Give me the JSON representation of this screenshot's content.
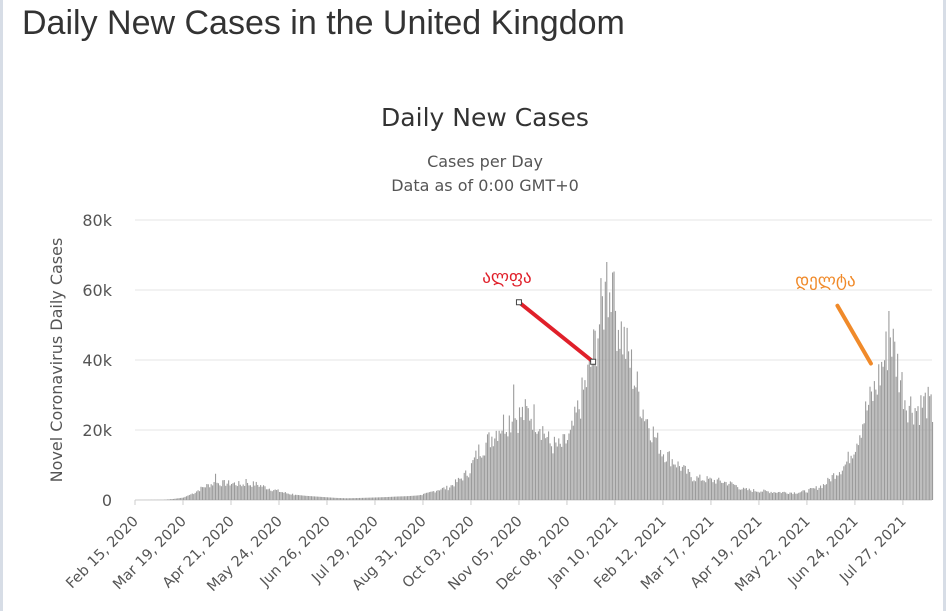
{
  "page": {
    "title": "Daily New Cases in the United Kingdom"
  },
  "chart_data": {
    "type": "bar",
    "title": "Daily New Cases",
    "subtitle": "Cases per Day",
    "subtitle2": "Data as of 0:00 GMT+0",
    "ylabel": "Novel Coronavirus Daily Cases",
    "xlabel": "",
    "ylim": [
      0,
      80000
    ],
    "yticks": [
      0,
      20000,
      40000,
      60000,
      80000
    ],
    "ytick_labels": [
      "0",
      "20k",
      "40k",
      "60k",
      "80k"
    ],
    "grid": true,
    "bar_color": "#9b9b9b",
    "x_start": "2020-02-15",
    "x_end": "2021-08-16",
    "x_tick_labels": [
      "Feb 15, 2020",
      "Mar 19, 2020",
      "Apr 21, 2020",
      "May 24, 2020",
      "Jun 26, 2020",
      "Jul 29, 2020",
      "Aug 31, 2020",
      "Oct 03, 2020",
      "Nov 05, 2020",
      "Dec 08, 2020",
      "Jan 10, 2021",
      "Feb 12, 2021",
      "Mar 17, 2021",
      "Apr 19, 2021",
      "May 22, 2021",
      "Jun 24, 2021",
      "Jul 27, 2021"
    ],
    "x_tick_dates": [
      "2020-02-15",
      "2020-03-19",
      "2020-04-21",
      "2020-05-24",
      "2020-06-26",
      "2020-07-29",
      "2020-08-31",
      "2020-10-03",
      "2020-11-05",
      "2020-12-08",
      "2021-01-10",
      "2021-02-12",
      "2021-03-17",
      "2021-04-19",
      "2021-05-22",
      "2021-06-24",
      "2021-07-27"
    ],
    "series": [
      {
        "points": [
          [
            "2020-02-15",
            0
          ],
          [
            "2020-03-05",
            50
          ],
          [
            "2020-03-12",
            300
          ],
          [
            "2020-03-19",
            700
          ],
          [
            "2020-03-26",
            2000
          ],
          [
            "2020-04-02",
            3800
          ],
          [
            "2020-04-09",
            4800
          ],
          [
            "2020-04-16",
            4800
          ],
          [
            "2020-04-23",
            4700
          ],
          [
            "2020-04-30",
            4300
          ],
          [
            "2020-05-07",
            4600
          ],
          [
            "2020-05-14",
            3700
          ],
          [
            "2020-05-21",
            2800
          ],
          [
            "2020-05-28",
            2000
          ],
          [
            "2020-06-04",
            1500
          ],
          [
            "2020-06-11",
            1200
          ],
          [
            "2020-06-18",
            1000
          ],
          [
            "2020-06-25",
            800
          ],
          [
            "2020-07-02",
            600
          ],
          [
            "2020-07-09",
            500
          ],
          [
            "2020-07-16",
            560
          ],
          [
            "2020-07-23",
            650
          ],
          [
            "2020-07-30",
            740
          ],
          [
            "2020-08-06",
            850
          ],
          [
            "2020-08-13",
            1000
          ],
          [
            "2020-08-20",
            1100
          ],
          [
            "2020-08-27",
            1300
          ],
          [
            "2020-09-03",
            1800
          ],
          [
            "2020-09-10",
            3000
          ],
          [
            "2020-09-17",
            3500
          ],
          [
            "2020-09-24",
            5500
          ],
          [
            "2020-10-01",
            8000
          ],
          [
            "2020-10-08",
            14000
          ],
          [
            "2020-10-15",
            17000
          ],
          [
            "2020-10-22",
            21000
          ],
          [
            "2020-10-29",
            23000
          ],
          [
            "2020-11-05",
            24000
          ],
          [
            "2020-11-12",
            25000
          ],
          [
            "2020-11-19",
            22000
          ],
          [
            "2020-11-26",
            16000
          ],
          [
            "2020-12-03",
            15000
          ],
          [
            "2020-12-10",
            18000
          ],
          [
            "2020-12-17",
            28000
          ],
          [
            "2020-12-24",
            38000
          ],
          [
            "2020-12-31",
            53000
          ],
          [
            "2021-01-04",
            60000
          ],
          [
            "2021-01-07",
            58000
          ],
          [
            "2021-01-14",
            48000
          ],
          [
            "2021-01-21",
            38000
          ],
          [
            "2021-01-28",
            27000
          ],
          [
            "2021-02-04",
            20000
          ],
          [
            "2021-02-11",
            14000
          ],
          [
            "2021-02-18",
            11500
          ],
          [
            "2021-02-25",
            9000
          ],
          [
            "2021-03-04",
            6400
          ],
          [
            "2021-03-11",
            6000
          ],
          [
            "2021-03-18",
            5600
          ],
          [
            "2021-03-25",
            5200
          ],
          [
            "2021-04-01",
            4500
          ],
          [
            "2021-04-08",
            3000
          ],
          [
            "2021-04-15",
            2700
          ],
          [
            "2021-04-22",
            2500
          ],
          [
            "2021-04-29",
            2300
          ],
          [
            "2021-05-06",
            2200
          ],
          [
            "2021-05-13",
            2100
          ],
          [
            "2021-05-20",
            2400
          ],
          [
            "2021-05-27",
            3200
          ],
          [
            "2021-06-03",
            4500
          ],
          [
            "2021-06-10",
            7500
          ],
          [
            "2021-06-17",
            10000
          ],
          [
            "2021-06-24",
            16000
          ],
          [
            "2021-07-01",
            25000
          ],
          [
            "2021-07-08",
            32000
          ],
          [
            "2021-07-15",
            42000
          ],
          [
            "2021-07-18",
            48000
          ],
          [
            "2021-07-22",
            40000
          ],
          [
            "2021-07-29",
            28000
          ],
          [
            "2021-08-05",
            26000
          ],
          [
            "2021-08-12",
            28000
          ],
          [
            "2021-08-16",
            25000
          ]
        ],
        "spikes": [
          [
            "2020-04-10",
            7500
          ],
          [
            "2020-05-01",
            6000
          ],
          [
            "2020-11-01",
            33000
          ],
          [
            "2021-01-04",
            68000
          ],
          [
            "2021-01-08",
            65000
          ],
          [
            "2021-07-17",
            54000
          ]
        ]
      }
    ],
    "annotations": [
      {
        "label": "ალფა",
        "color": "#e0202a",
        "line_from": [
          "2020-11-05",
          56500
        ],
        "line_to": [
          "2020-12-26",
          39500
        ]
      },
      {
        "label": "დელტა",
        "color": "#f08a2a",
        "line_from": [
          "2021-06-12",
          55500
        ],
        "line_to": [
          "2021-07-05",
          39000
        ]
      }
    ]
  }
}
